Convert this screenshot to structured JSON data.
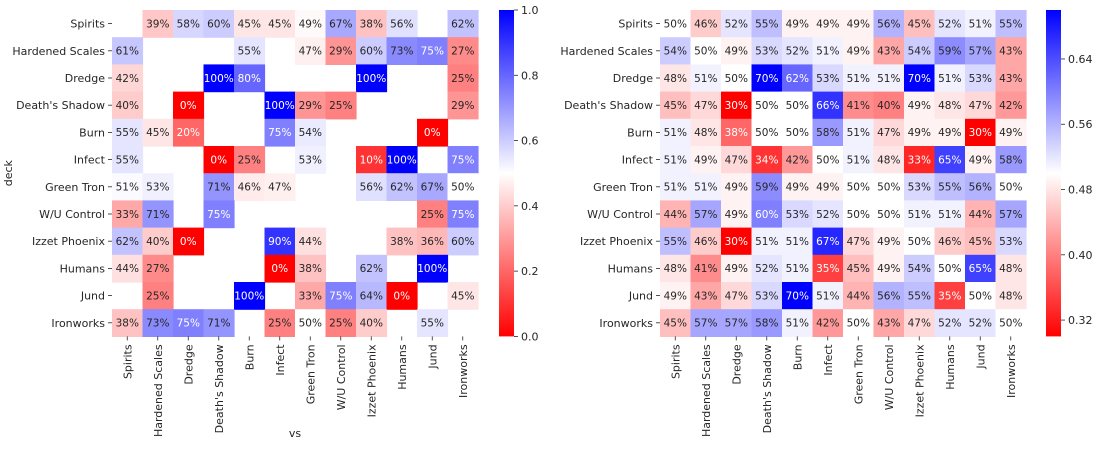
{
  "chart_data": [
    {
      "type": "heatmap",
      "title": "",
      "xlabel": "vs",
      "ylabel": "deck",
      "rows": [
        "Spirits",
        "Hardened Scales",
        "Dredge",
        "Death's Shadow",
        "Burn",
        "Infect",
        "Green Tron",
        "W/U Control",
        "Izzet Phoenix",
        "Humans",
        "Jund",
        "Ironworks"
      ],
      "cols": [
        "Spirits",
        "Hardened Scales",
        "Dredge",
        "Death's Shadow",
        "Burn",
        "Infect",
        "Green Tron",
        "W/U Control",
        "Izzet Phoenix",
        "Humans",
        "Jund",
        "Ironworks"
      ],
      "values": [
        [
          null,
          0.39,
          0.58,
          0.6,
          0.45,
          0.45,
          0.49,
          0.67,
          0.38,
          0.56,
          null,
          0.62
        ],
        [
          0.61,
          null,
          null,
          null,
          0.55,
          null,
          0.47,
          0.29,
          0.6,
          0.73,
          0.75,
          0.27
        ],
        [
          0.42,
          null,
          null,
          1.0,
          0.8,
          null,
          null,
          null,
          1.0,
          null,
          null,
          0.25
        ],
        [
          0.4,
          null,
          0.0,
          null,
          null,
          1.0,
          0.29,
          0.25,
          null,
          null,
          null,
          0.29
        ],
        [
          0.55,
          0.45,
          0.2,
          null,
          null,
          0.75,
          0.54,
          null,
          null,
          null,
          0.0,
          null
        ],
        [
          0.55,
          null,
          null,
          0.0,
          0.25,
          null,
          0.53,
          null,
          0.1,
          1.0,
          null,
          0.75
        ],
        [
          0.51,
          0.53,
          null,
          0.71,
          0.46,
          0.47,
          null,
          null,
          0.56,
          0.62,
          0.67,
          0.5
        ],
        [
          0.33,
          0.71,
          null,
          0.75,
          null,
          null,
          null,
          null,
          null,
          null,
          0.25,
          0.75
        ],
        [
          0.62,
          0.4,
          0.0,
          null,
          null,
          0.9,
          0.44,
          null,
          null,
          0.38,
          0.36,
          0.6
        ],
        [
          0.44,
          0.27,
          null,
          null,
          null,
          0.0,
          0.38,
          null,
          0.62,
          null,
          1.0,
          null
        ],
        [
          null,
          0.25,
          null,
          null,
          1.0,
          null,
          0.33,
          0.75,
          0.64,
          0.0,
          null,
          0.45
        ],
        [
          0.38,
          0.73,
          0.75,
          0.71,
          null,
          0.25,
          0.5,
          0.25,
          0.4,
          null,
          0.55,
          null
        ]
      ],
      "colormap": "bwr_r",
      "vmin": 0.0,
      "vmax": 1.0,
      "colorbar_ticks": [
        "0.0",
        "0.2",
        "0.4",
        "0.6",
        "0.8",
        "1.0"
      ],
      "colorbar_tick_values": [
        0.0,
        0.2,
        0.4,
        0.6,
        0.8,
        1.0
      ]
    },
    {
      "type": "heatmap",
      "title": "",
      "xlabel": "",
      "ylabel": "",
      "rows": [
        "Spirits",
        "Hardened Scales",
        "Dredge",
        "Death's Shadow",
        "Burn",
        "Infect",
        "Green Tron",
        "W/U Control",
        "Izzet Phoenix",
        "Humans",
        "Jund",
        "Ironworks"
      ],
      "cols": [
        "Spirits",
        "Hardened Scales",
        "Dredge",
        "Death's Shadow",
        "Burn",
        "Infect",
        "Green Tron",
        "W/U Control",
        "Izzet Phoenix",
        "Humans",
        "Jund",
        "Ironworks"
      ],
      "values": [
        [
          0.5,
          0.46,
          0.52,
          0.55,
          0.49,
          0.49,
          0.49,
          0.56,
          0.45,
          0.52,
          0.51,
          0.55
        ],
        [
          0.54,
          0.5,
          0.49,
          0.53,
          0.52,
          0.51,
          0.49,
          0.43,
          0.54,
          0.59,
          0.57,
          0.43
        ],
        [
          0.48,
          0.51,
          0.5,
          0.7,
          0.62,
          0.53,
          0.51,
          0.51,
          0.7,
          0.51,
          0.53,
          0.43
        ],
        [
          0.45,
          0.47,
          0.3,
          0.5,
          0.5,
          0.66,
          0.41,
          0.4,
          0.49,
          0.48,
          0.47,
          0.42
        ],
        [
          0.51,
          0.48,
          0.38,
          0.5,
          0.5,
          0.58,
          0.51,
          0.47,
          0.49,
          0.49,
          0.3,
          0.49
        ],
        [
          0.51,
          0.49,
          0.47,
          0.34,
          0.42,
          0.5,
          0.51,
          0.48,
          0.33,
          0.65,
          0.49,
          0.58
        ],
        [
          0.51,
          0.51,
          0.49,
          0.59,
          0.49,
          0.49,
          0.5,
          0.5,
          0.53,
          0.55,
          0.56,
          0.5
        ],
        [
          0.44,
          0.57,
          0.49,
          0.6,
          0.53,
          0.52,
          0.5,
          0.5,
          0.51,
          0.51,
          0.44,
          0.57
        ],
        [
          0.55,
          0.46,
          0.3,
          0.51,
          0.51,
          0.67,
          0.47,
          0.49,
          0.5,
          0.46,
          0.45,
          0.53
        ],
        [
          0.48,
          0.41,
          0.49,
          0.52,
          0.51,
          0.35,
          0.45,
          0.49,
          0.54,
          0.5,
          0.65,
          0.48
        ],
        [
          0.49,
          0.43,
          0.47,
          0.53,
          0.7,
          0.51,
          0.44,
          0.56,
          0.55,
          0.35,
          0.5,
          0.48
        ],
        [
          0.45,
          0.57,
          0.57,
          0.58,
          0.51,
          0.42,
          0.5,
          0.43,
          0.47,
          0.52,
          0.52,
          0.5
        ]
      ],
      "colormap": "bwr_r",
      "vmin": 0.3,
      "vmax": 0.7,
      "colorbar_ticks": [
        "0.32",
        "0.40",
        "0.48",
        "0.56",
        "0.64"
      ],
      "colorbar_tick_values": [
        0.32,
        0.4,
        0.48,
        0.56,
        0.64
      ]
    }
  ]
}
